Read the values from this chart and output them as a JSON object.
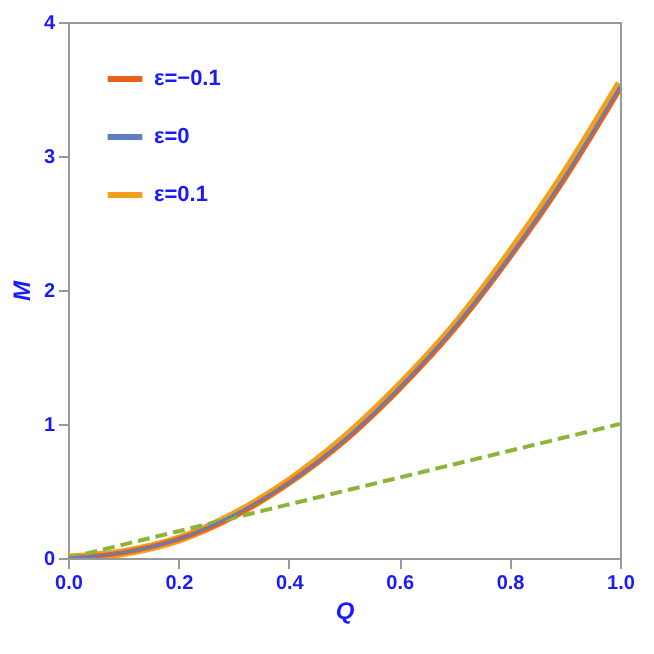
{
  "chart_data": {
    "type": "line",
    "xlabel": "Q",
    "ylabel": "M",
    "x": [
      0,
      0.1,
      0.2,
      0.3,
      0.4,
      0.5,
      0.6,
      0.7,
      0.8,
      0.9,
      1.0
    ],
    "series": [
      {
        "name": "ε=−0.1",
        "color": "#e8601c",
        "values": [
          0,
          0.04,
          0.14,
          0.31,
          0.56,
          0.87,
          1.26,
          1.71,
          2.24,
          2.83,
          3.5
        ]
      },
      {
        "name": "ε=0",
        "color": "#5e7ec4",
        "values": [
          0,
          0.04,
          0.14,
          0.32,
          0.56,
          0.88,
          1.27,
          1.72,
          2.25,
          2.85,
          3.52
        ]
      },
      {
        "name": "ε=0.1",
        "color": "#f0a01c",
        "values": [
          0,
          0.04,
          0.14,
          0.32,
          0.57,
          0.89,
          1.28,
          1.73,
          2.27,
          2.87,
          3.54
        ]
      },
      {
        "color": "#8db33a",
        "line_style": "dashed",
        "values": [
          0,
          0.1,
          0.2,
          0.3,
          0.4,
          0.5,
          0.6,
          0.7,
          0.8,
          0.9,
          1.0
        ]
      }
    ],
    "xlim": [
      0,
      1.0
    ],
    "xticks": [
      {
        "value": 0,
        "label": "0.0"
      },
      0.2,
      0.4,
      0.6,
      0.8,
      {
        "value": 1,
        "label": "1.0"
      }
    ],
    "ylim": [
      0,
      4
    ],
    "yticks": [
      0,
      1,
      2,
      3,
      4
    ],
    "legend": "top left",
    "grid": false
  }
}
